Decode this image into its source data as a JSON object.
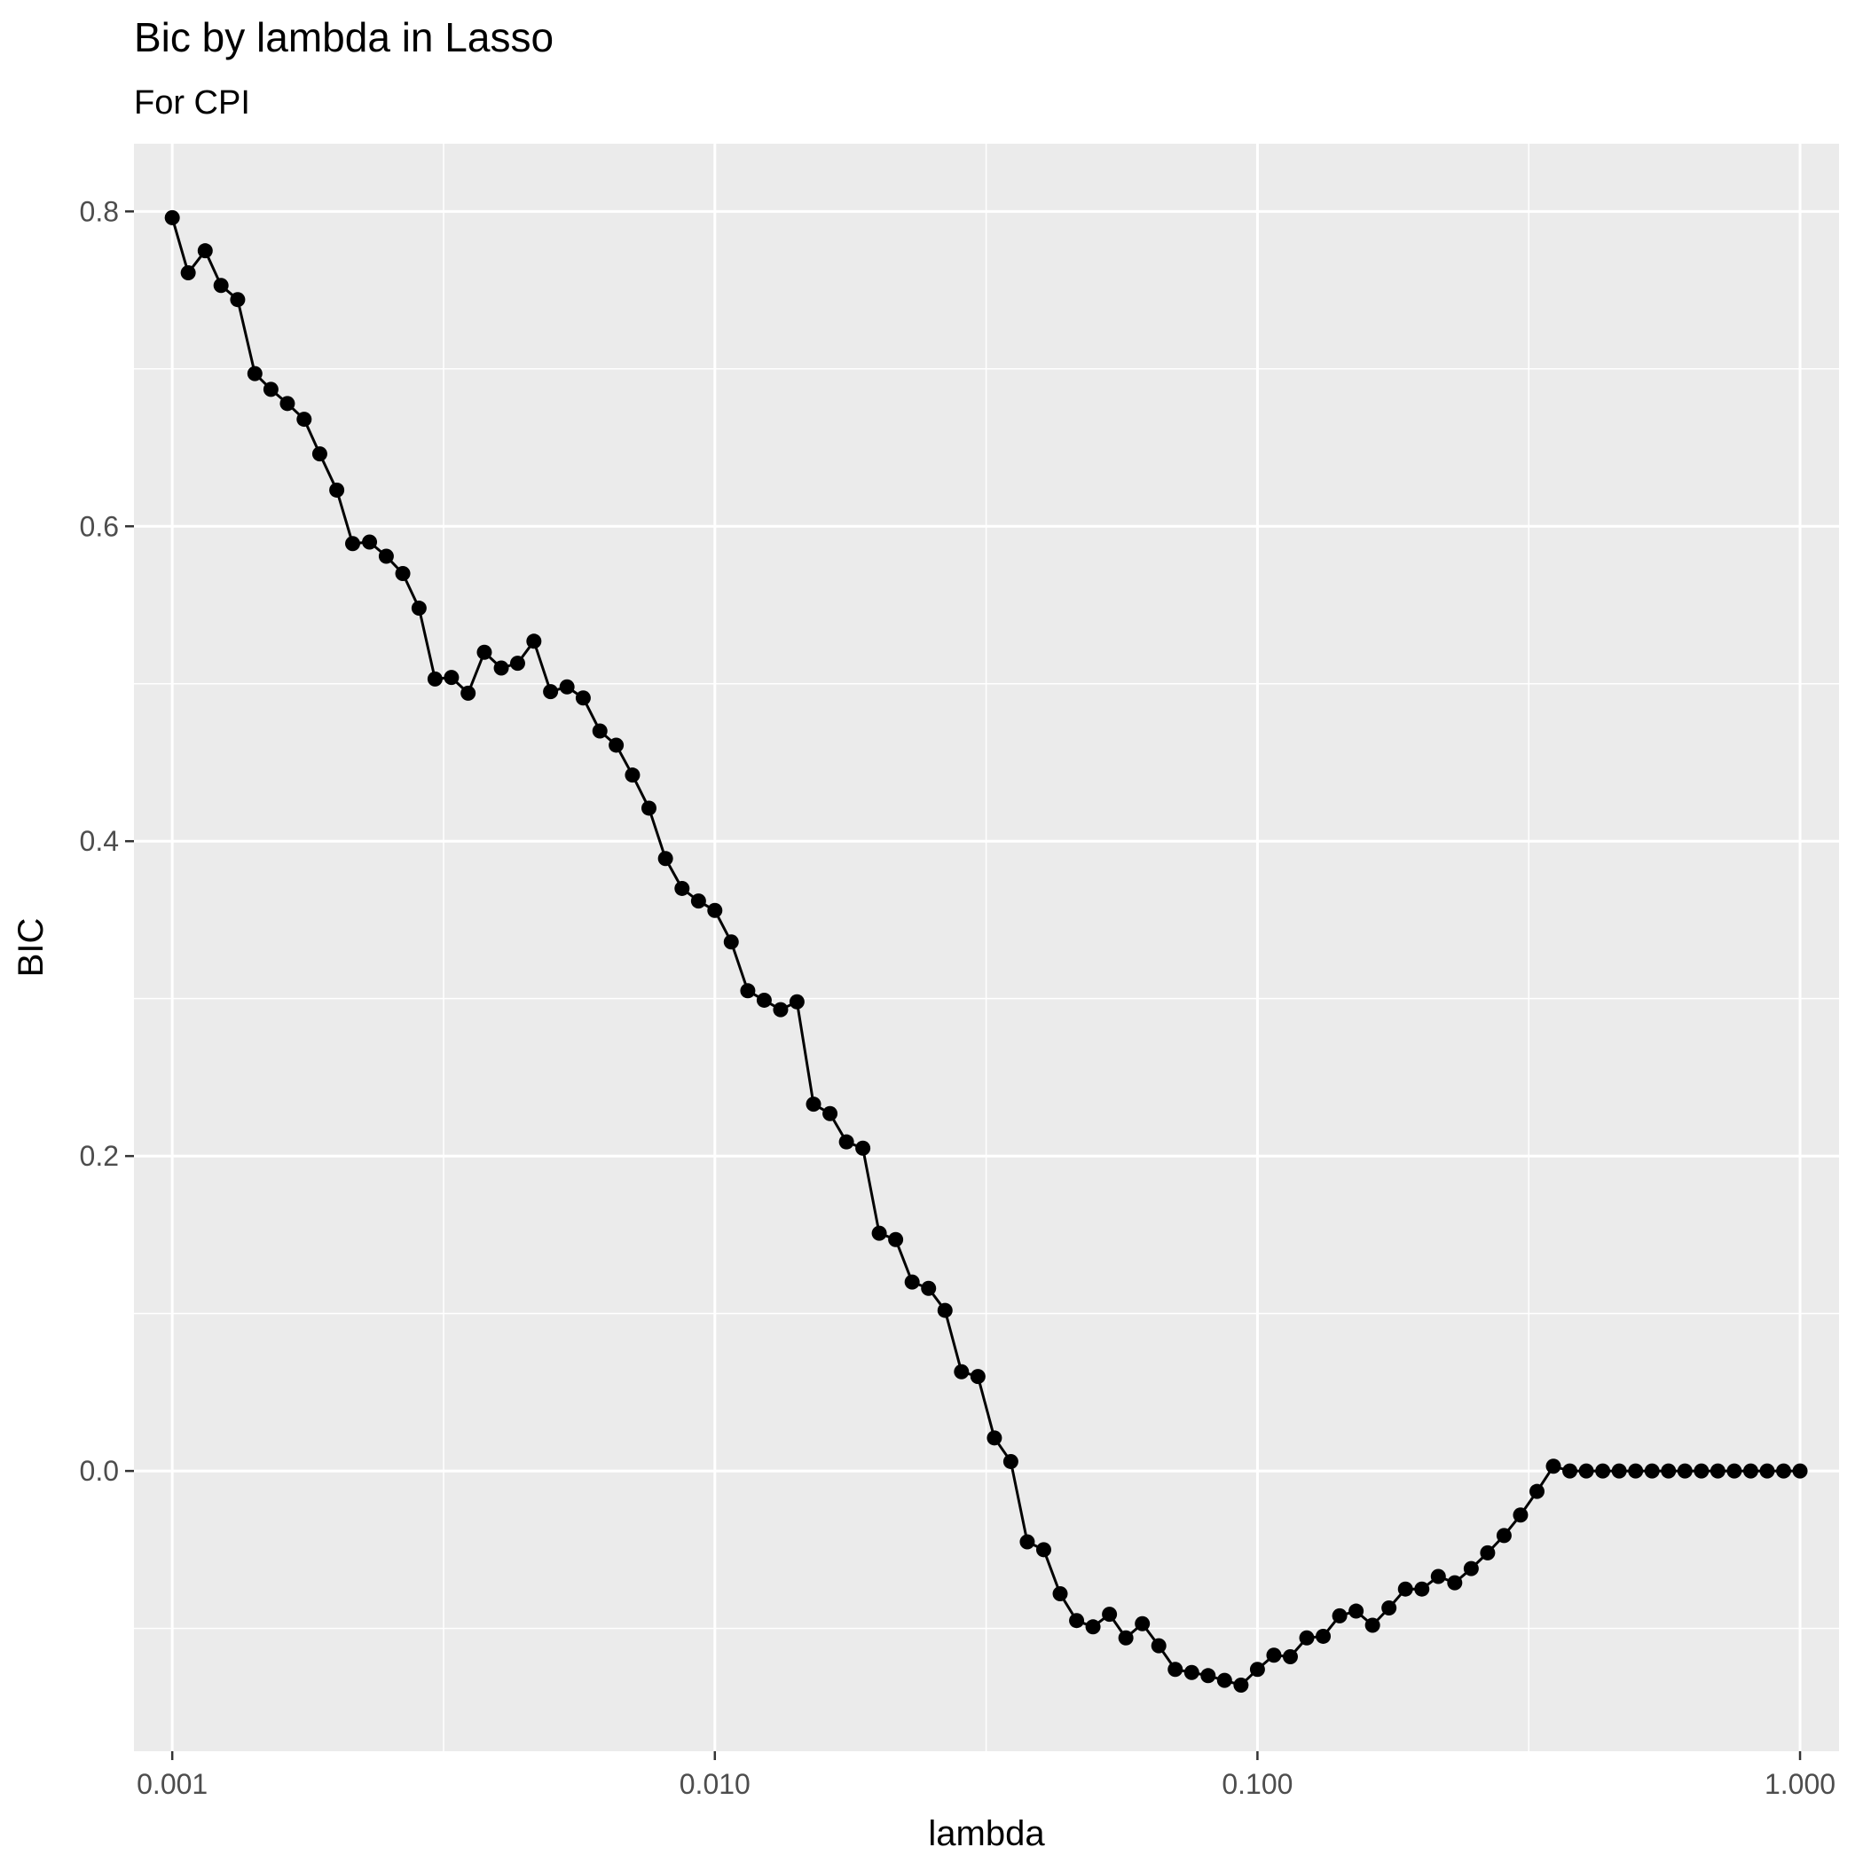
{
  "chart_data": {
    "type": "line",
    "title": "Bic by lambda in Lasso",
    "subtitle": "For CPI",
    "xlabel": "lambda",
    "ylabel": "BIC",
    "x_scale": "log10",
    "xlim": [
      0.00085,
      1.18
    ],
    "ylim": [
      -0.178,
      0.843
    ],
    "x_ticks": [
      0.001,
      0.01,
      0.1,
      1.0
    ],
    "x_tick_labels": [
      "0.001",
      "0.010",
      "0.100",
      "1.000"
    ],
    "y_ticks": [
      0.0,
      0.2,
      0.4,
      0.6,
      0.8
    ],
    "y_tick_labels": [
      "0.0",
      "0.2",
      "0.4",
      "0.6",
      "0.8"
    ],
    "grid": true,
    "colors": {
      "panel": "#ebebeb",
      "grid": "#ffffff",
      "series": "#000000"
    },
    "series": [
      {
        "x": [
          0.001,
          0.00107,
          0.00115,
          0.00123,
          0.00132,
          0.00142,
          0.00152,
          0.00163,
          0.00175,
          0.00187,
          0.00201,
          0.00215,
          0.00231,
          0.00248,
          0.00266,
          0.00285,
          0.00305,
          0.00327,
          0.00351,
          0.00376,
          0.00404,
          0.00433,
          0.00464,
          0.00498,
          0.00534,
          0.00572,
          0.00614,
          0.00658,
          0.00705,
          0.00756,
          0.00811,
          0.0087,
          0.00933,
          0.01,
          0.01072,
          0.0115,
          0.01233,
          0.01322,
          0.01417,
          0.0152,
          0.0163,
          0.01748,
          0.01874,
          0.02009,
          0.02154,
          0.0231,
          0.02477,
          0.02656,
          0.02848,
          0.03054,
          0.03275,
          0.03511,
          0.03765,
          0.04037,
          0.04329,
          0.04642,
          0.04977,
          0.05337,
          0.05722,
          0.06136,
          0.06579,
          0.07055,
          0.07565,
          0.08111,
          0.08697,
          0.09326,
          0.1,
          0.10723,
          0.11498,
          0.12328,
          0.13219,
          0.14175,
          0.15199,
          0.16298,
          0.17475,
          0.18738,
          0.20092,
          0.21544,
          0.23101,
          0.24771,
          0.26561,
          0.2848,
          0.30539,
          0.32745,
          0.35112,
          0.37649,
          0.4037,
          0.43288,
          0.46416,
          0.4977,
          0.53367,
          0.57224,
          0.61359,
          0.65793,
          0.70548,
          0.75646,
          0.81113,
          0.86975,
          0.9326,
          1.0
        ],
        "values": [
          0.796,
          0.761,
          0.775,
          0.753,
          0.744,
          0.697,
          0.687,
          0.678,
          0.668,
          0.646,
          0.623,
          0.589,
          0.59,
          0.581,
          0.57,
          0.548,
          0.503,
          0.504,
          0.494,
          0.52,
          0.51,
          0.513,
          0.527,
          0.495,
          0.498,
          0.491,
          0.47,
          0.461,
          0.442,
          0.421,
          0.389,
          0.37,
          0.362,
          0.356,
          0.336,
          0.305,
          0.299,
          0.293,
          0.298,
          0.233,
          0.227,
          0.209,
          0.205,
          0.151,
          0.147,
          0.12,
          0.116,
          0.102,
          0.063,
          0.06,
          0.021,
          0.006,
          -0.045,
          -0.05,
          -0.078,
          -0.095,
          -0.099,
          -0.091,
          -0.106,
          -0.097,
          -0.111,
          -0.126,
          -0.128,
          -0.13,
          -0.133,
          -0.136,
          -0.126,
          -0.117,
          -0.118,
          -0.106,
          -0.105,
          -0.092,
          -0.089,
          -0.098,
          -0.087,
          -0.075,
          -0.075,
          -0.067,
          -0.071,
          -0.062,
          -0.052,
          -0.041,
          -0.028,
          -0.013,
          0.003,
          0.0,
          0.0,
          0.0,
          0.0,
          0.0,
          0.0,
          0.0,
          0.0,
          0.0,
          0.0,
          0.0,
          0.0,
          0.0,
          0.0,
          0.0
        ]
      }
    ]
  }
}
